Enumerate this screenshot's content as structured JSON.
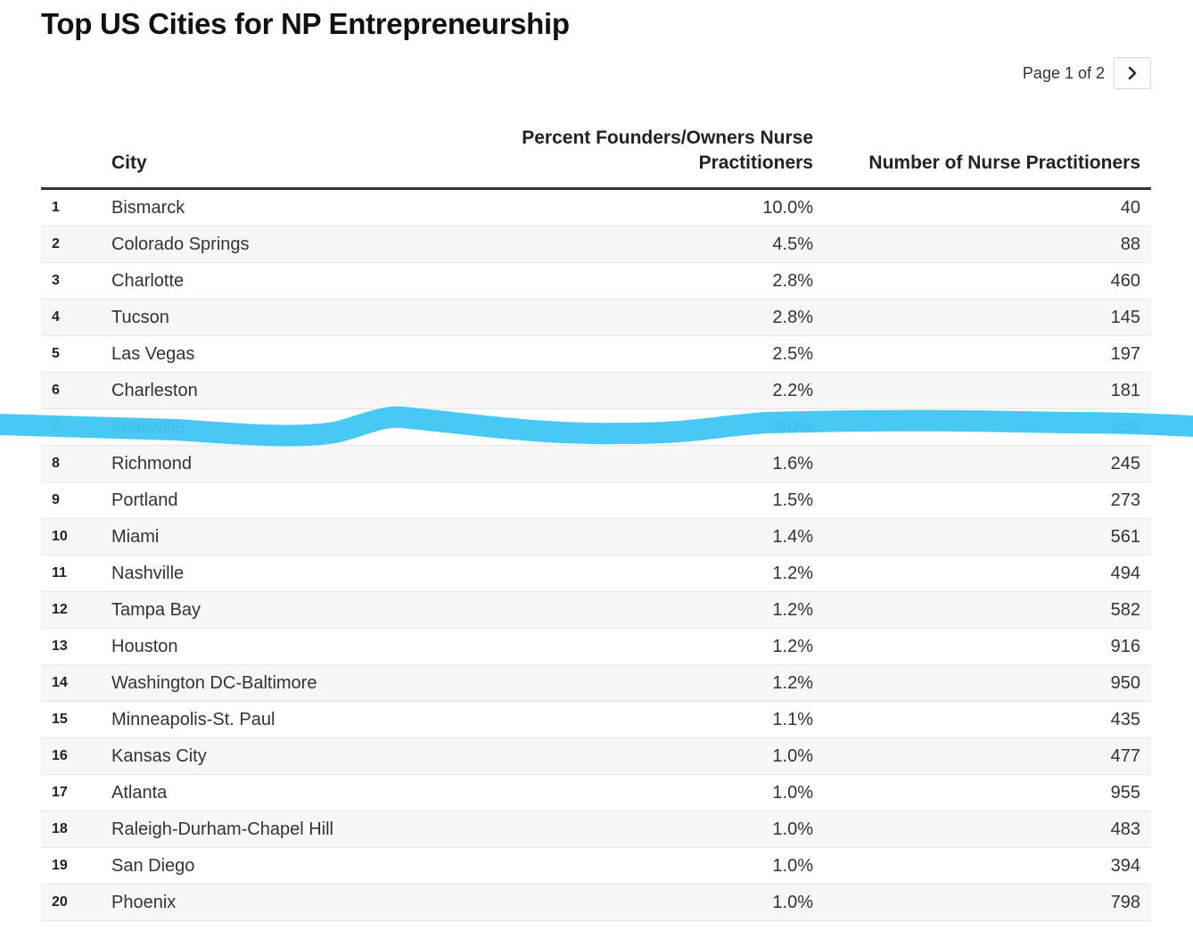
{
  "title": "Top US Cities for NP Entrepreneurship",
  "pagination": {
    "label": "Page 1 of 2",
    "next_icon": "chevron-right-icon"
  },
  "columns": {
    "rank": "",
    "city": "City",
    "pct_line1": "Percent Founders/Owners Nurse",
    "pct_line2": "Practitioners",
    "num": "Number of Nurse Practitioners"
  },
  "colors": {
    "highlight_stroke": "#3ec6f3",
    "header_rule": "#333333",
    "alt_row": "#f7f7f7"
  },
  "highlighted_rank": 7,
  "chart_data": {
    "type": "table",
    "title": "Top US Cities for NP Entrepreneurship",
    "columns": [
      "",
      "City",
      "Percent Founders/Owners Nurse Practitioners",
      "Number of Nurse Practitioners"
    ],
    "rows": [
      {
        "rank": "1",
        "city": "Bismarck",
        "pct": "10.0%",
        "num": "40"
      },
      {
        "rank": "2",
        "city": "Colorado Springs",
        "pct": "4.5%",
        "num": "88"
      },
      {
        "rank": "3",
        "city": "Charlotte",
        "pct": "2.8%",
        "num": "460"
      },
      {
        "rank": "4",
        "city": "Tucson",
        "pct": "2.8%",
        "num": "145"
      },
      {
        "rank": "5",
        "city": "Las Vegas",
        "pct": "2.5%",
        "num": "197"
      },
      {
        "rank": "6",
        "city": "Charleston",
        "pct": "2.2%",
        "num": "181"
      },
      {
        "rank": "7",
        "city": "Louisville",
        "pct": "2.0%",
        "num": "250"
      },
      {
        "rank": "8",
        "city": "Richmond",
        "pct": "1.6%",
        "num": "245"
      },
      {
        "rank": "9",
        "city": "Portland",
        "pct": "1.5%",
        "num": "273"
      },
      {
        "rank": "10",
        "city": "Miami",
        "pct": "1.4%",
        "num": "561"
      },
      {
        "rank": "11",
        "city": "Nashville",
        "pct": "1.2%",
        "num": "494"
      },
      {
        "rank": "12",
        "city": "Tampa Bay",
        "pct": "1.2%",
        "num": "582"
      },
      {
        "rank": "13",
        "city": "Houston",
        "pct": "1.2%",
        "num": "916"
      },
      {
        "rank": "14",
        "city": "Washington DC-Baltimore",
        "pct": "1.2%",
        "num": "950"
      },
      {
        "rank": "15",
        "city": "Minneapolis-St. Paul",
        "pct": "1.1%",
        "num": "435"
      },
      {
        "rank": "16",
        "city": "Kansas City",
        "pct": "1.0%",
        "num": "477"
      },
      {
        "rank": "17",
        "city": "Atlanta",
        "pct": "1.0%",
        "num": "955"
      },
      {
        "rank": "18",
        "city": "Raleigh-Durham-Chapel Hill",
        "pct": "1.0%",
        "num": "483"
      },
      {
        "rank": "19",
        "city": "San Diego",
        "pct": "1.0%",
        "num": "394"
      },
      {
        "rank": "20",
        "city": "Phoenix",
        "pct": "1.0%",
        "num": "798"
      }
    ]
  }
}
